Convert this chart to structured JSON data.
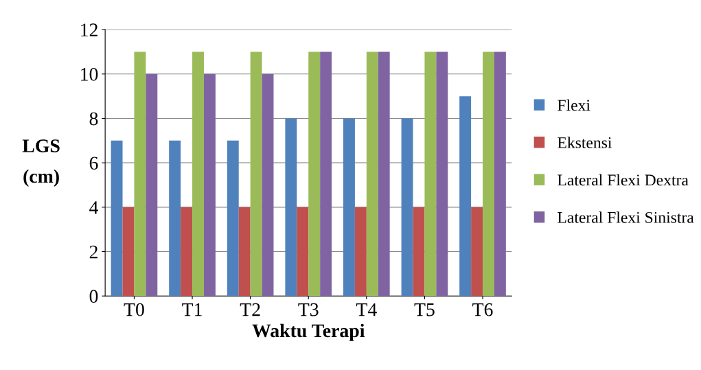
{
  "chart_data": {
    "type": "bar",
    "xlabel": "Waktu Terapi",
    "ylabel": "LGS\n(cm)",
    "categories": [
      "T0",
      "T1",
      "T2",
      "T3",
      "T4",
      "T5",
      "T6"
    ],
    "series": [
      {
        "name": "Flexi",
        "color": "#4f81bd",
        "values": [
          7,
          7,
          7,
          8,
          8,
          8,
          9
        ]
      },
      {
        "name": "Ekstensi",
        "color": "#c0504d",
        "values": [
          4,
          4,
          4,
          4,
          4,
          4,
          4
        ]
      },
      {
        "name": "Lateral Flexi Dextra",
        "color": "#9bbb59",
        "values": [
          11,
          11,
          11,
          11,
          11,
          11,
          11
        ]
      },
      {
        "name": "Lateral Flexi Sinistra",
        "color": "#8064a2",
        "values": [
          10,
          10,
          10,
          11,
          11,
          11,
          11
        ]
      }
    ],
    "ylim": [
      0,
      12
    ],
    "yticks": [
      0,
      2,
      4,
      6,
      8,
      10,
      12
    ],
    "grid": "y",
    "legend": "right"
  }
}
